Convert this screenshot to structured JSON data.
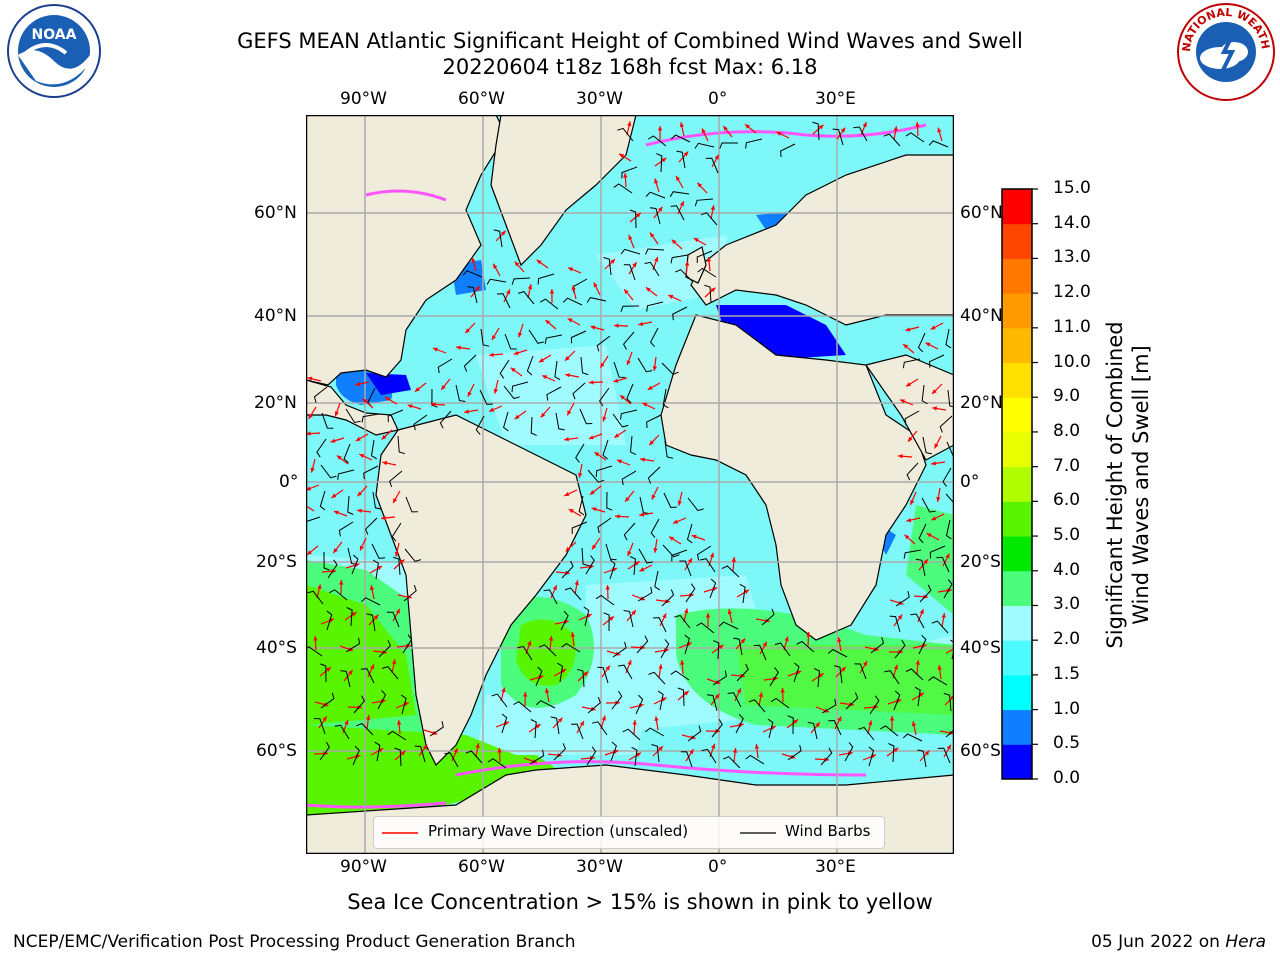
{
  "header": {
    "title_line1": "GEFS MEAN Atlantic Significant Height of Combined Wind Waves and Swell",
    "title_line2": "20220604 t18z 168h fcst   Max: 6.18"
  },
  "logos": {
    "noaa_text": "NOAA",
    "nws_text": "NATIONAL WEATHER SERVICE"
  },
  "map": {
    "lon_labels": [
      "90°W",
      "60°W",
      "30°W",
      "0°",
      "30°E"
    ],
    "lat_labels": [
      "60°N",
      "40°N",
      "20°N",
      "0°",
      "20°S",
      "40°S",
      "60°S"
    ],
    "colors": {
      "land": "#efecdb",
      "ocean_low": "#7df7f7",
      "gridline": "#aaaaaa",
      "arrow": "#ff0000",
      "barb": "#000000"
    }
  },
  "legend": {
    "wave_direction": "Primary Wave Direction (unscaled)",
    "wind_barbs": "Wind Barbs"
  },
  "colorbar": {
    "title_line1": "Significant Height of Combined",
    "title_line2": "Wind Waves and Swell [m]",
    "ticks": [
      "0.0",
      "0.5",
      "1.0",
      "1.5",
      "2.0",
      "3.0",
      "4.0",
      "5.0",
      "6.0",
      "7.0",
      "8.0",
      "9.0",
      "10.0",
      "11.0",
      "12.0",
      "13.0",
      "14.0",
      "15.0"
    ],
    "colors": [
      "#0000ff",
      "#0f7fff",
      "#00ffff",
      "#4dfbff",
      "#a0fbff",
      "#4cfc7c",
      "#00e800",
      "#59f400",
      "#b0fc00",
      "#e8ff00",
      "#ffff00",
      "#ffe000",
      "#ffba00",
      "#ff9b00",
      "#ff7800",
      "#ff4600",
      "#ff0000"
    ]
  },
  "footer": {
    "note": "Sea Ice Concentration > 15% is shown in pink to yellow",
    "left": "NCEP/EMC/Verification Post Processing Product Generation Branch",
    "right_prefix": "05 Jun 2022 on ",
    "right_machine": "Hera"
  }
}
